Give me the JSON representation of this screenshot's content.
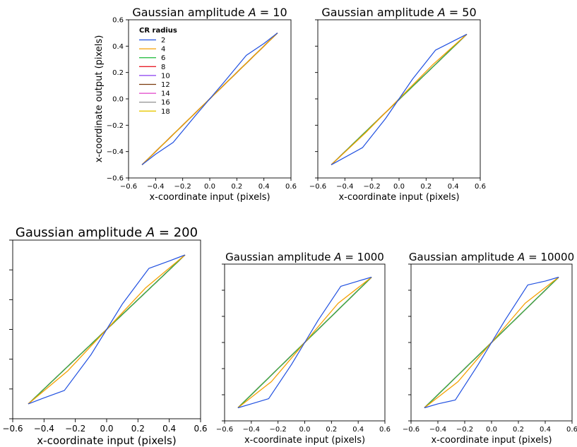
{
  "legend": {
    "title": "CR radius",
    "entries": [
      "2",
      "4",
      "6",
      "8",
      "10",
      "12",
      "14",
      "16",
      "18"
    ]
  },
  "colors": {
    "2": "#1f4fe0",
    "4": "#f5a000",
    "6": "#2fbf4a",
    "8": "#e8202a",
    "10": "#8a3cf0",
    "12": "#7a3a0c",
    "14": "#e040c8",
    "16": "#9a9a9a",
    "18": "#e8c800",
    "ideal_mid": "#e8702a"
  },
  "chart_data": [
    {
      "type": "line",
      "title": "Gaussian amplitude A = 10",
      "title_parts": {
        "prefix": "Gaussian amplitude ",
        "var": "A",
        "suffix": " = 10"
      },
      "xlabel": "x-coordinate input (pixels)",
      "ylabel": "x-coordinate output (pixels)",
      "xlim": [
        -0.6,
        0.6
      ],
      "ylim": [
        -0.6,
        0.6
      ],
      "xticks": [
        "−0.6",
        "−0.4",
        "−0.2",
        "0.0",
        "0.2",
        "0.4",
        "0.6"
      ],
      "yticks": [
        "−0.6",
        "−0.4",
        "−0.2",
        "0.0",
        "0.2",
        "0.4",
        "0.6"
      ],
      "show_legend": true,
      "series": [
        {
          "name": "2",
          "x": [
            -0.5,
            -0.4,
            -0.27,
            -0.1,
            0.0,
            0.1,
            0.27,
            0.4,
            0.5
          ],
          "y": [
            -0.5,
            -0.42,
            -0.33,
            -0.12,
            0.0,
            0.12,
            0.33,
            0.42,
            0.5
          ]
        },
        {
          "name": "4",
          "x": [
            -0.5,
            -0.25,
            0.0,
            0.25,
            0.5
          ],
          "y": [
            -0.5,
            -0.25,
            0.0,
            0.25,
            0.5
          ]
        },
        {
          "name": "6",
          "x": [
            -0.5,
            0.5
          ],
          "y": [
            -0.5,
            0.5
          ]
        },
        {
          "name": "8",
          "x": [
            -0.5,
            0.5
          ],
          "y": [
            -0.5,
            0.5
          ]
        },
        {
          "name": "10",
          "x": [
            -0.5,
            0.5
          ],
          "y": [
            -0.5,
            0.5
          ]
        },
        {
          "name": "12",
          "x": [
            -0.5,
            0.5
          ],
          "y": [
            -0.5,
            0.5
          ]
        },
        {
          "name": "14",
          "x": [
            -0.5,
            0.5
          ],
          "y": [
            -0.5,
            0.5
          ]
        },
        {
          "name": "16",
          "x": [
            -0.5,
            0.5
          ],
          "y": [
            -0.5,
            0.5
          ]
        },
        {
          "name": "18",
          "x": [
            -0.5,
            0.5
          ],
          "y": [
            -0.5,
            0.5
          ]
        }
      ]
    },
    {
      "type": "line",
      "title": "Gaussian amplitude A = 50",
      "title_parts": {
        "prefix": "Gaussian amplitude ",
        "var": "A",
        "suffix": " = 50"
      },
      "xlabel": "x-coordinate input (pixels)",
      "ylabel": "",
      "xlim": [
        -0.6,
        0.6
      ],
      "ylim": [
        -0.6,
        0.6
      ],
      "xticks": [
        "−0.6",
        "−0.4",
        "−0.2",
        "0.0",
        "0.2",
        "0.4",
        "0.6"
      ],
      "yticks": [],
      "show_legend": false,
      "series": [
        {
          "name": "2",
          "x": [
            -0.5,
            -0.27,
            -0.1,
            0.0,
            0.1,
            0.27,
            0.5
          ],
          "y": [
            -0.5,
            -0.37,
            -0.15,
            0.0,
            0.15,
            0.37,
            0.49
          ]
        },
        {
          "name": "4",
          "x": [
            -0.5,
            -0.25,
            0.0,
            0.25,
            0.5
          ],
          "y": [
            -0.5,
            -0.26,
            0.0,
            0.26,
            0.49
          ]
        },
        {
          "name": "6",
          "x": [
            -0.5,
            0.5
          ],
          "y": [
            -0.5,
            0.49
          ]
        },
        {
          "name": "8",
          "x": [
            -0.5,
            0.5
          ],
          "y": [
            -0.5,
            0.49
          ]
        },
        {
          "name": "10",
          "x": [
            -0.5,
            0.5
          ],
          "y": [
            -0.5,
            0.49
          ]
        },
        {
          "name": "12",
          "x": [
            -0.5,
            0.5
          ],
          "y": [
            -0.5,
            0.49
          ]
        },
        {
          "name": "14",
          "x": [
            -0.5,
            0.5
          ],
          "y": [
            -0.5,
            0.49
          ]
        },
        {
          "name": "16",
          "x": [
            -0.5,
            0.5
          ],
          "y": [
            -0.5,
            0.49
          ]
        },
        {
          "name": "18",
          "x": [
            -0.5,
            0.5
          ],
          "y": [
            -0.5,
            0.49
          ]
        }
      ]
    },
    {
      "type": "line",
      "title": "Gaussian amplitude A = 200",
      "title_parts": {
        "prefix": "Gaussian amplitude ",
        "var": "A",
        "suffix": " = 200"
      },
      "xlabel": "x-coordinate input (pixels)",
      "ylabel": "",
      "xlim": [
        -0.6,
        0.6
      ],
      "ylim": [
        -0.6,
        0.6
      ],
      "xticks": [
        "−0.6",
        "−0.4",
        "−0.2",
        "0.0",
        "0.2",
        "0.4",
        "0.6"
      ],
      "yticks": [],
      "show_legend": false,
      "series": [
        {
          "name": "2",
          "x": [
            -0.5,
            -0.4,
            -0.27,
            -0.1,
            0.0,
            0.1,
            0.27,
            0.4,
            0.5
          ],
          "y": [
            -0.5,
            -0.46,
            -0.41,
            -0.17,
            0.0,
            0.17,
            0.41,
            0.46,
            0.5
          ]
        },
        {
          "name": "4",
          "x": [
            -0.5,
            -0.25,
            0.0,
            0.25,
            0.5
          ],
          "y": [
            -0.5,
            -0.28,
            0.0,
            0.28,
            0.5
          ]
        },
        {
          "name": "6",
          "x": [
            -0.5,
            0.5
          ],
          "y": [
            -0.5,
            0.5
          ]
        },
        {
          "name": "8",
          "x": [
            -0.5,
            0.5
          ],
          "y": [
            -0.5,
            0.5
          ]
        },
        {
          "name": "10",
          "x": [
            -0.5,
            0.5
          ],
          "y": [
            -0.5,
            0.5
          ]
        },
        {
          "name": "12",
          "x": [
            -0.5,
            0.5
          ],
          "y": [
            -0.5,
            0.5
          ]
        },
        {
          "name": "14",
          "x": [
            -0.5,
            0.5
          ],
          "y": [
            -0.5,
            0.5
          ]
        },
        {
          "name": "16",
          "x": [
            -0.5,
            0.5
          ],
          "y": [
            -0.5,
            0.5
          ]
        },
        {
          "name": "18",
          "x": [
            -0.5,
            0.5
          ],
          "y": [
            -0.5,
            0.5
          ]
        }
      ]
    },
    {
      "type": "line",
      "title": "Gaussian amplitude A = 1000",
      "title_parts": {
        "prefix": "Gaussian amplitude ",
        "var": "A",
        "suffix": " = 1000"
      },
      "xlabel": "x-coordinate input (pixels)",
      "ylabel": "",
      "xlim": [
        -0.6,
        0.6
      ],
      "ylim": [
        -0.6,
        0.6
      ],
      "xticks": [
        "−0.6",
        "−0.4",
        "−0.2",
        "0.0",
        "0.2",
        "0.4",
        "0.6"
      ],
      "yticks": [],
      "show_legend": false,
      "series": [
        {
          "name": "2",
          "x": [
            -0.5,
            -0.4,
            -0.27,
            -0.1,
            0.0,
            0.1,
            0.27,
            0.4,
            0.5
          ],
          "y": [
            -0.5,
            -0.47,
            -0.43,
            -0.17,
            0.0,
            0.17,
            0.43,
            0.47,
            0.5
          ]
        },
        {
          "name": "4",
          "x": [
            -0.5,
            -0.25,
            0.0,
            0.25,
            0.5
          ],
          "y": [
            -0.5,
            -0.3,
            0.0,
            0.3,
            0.5
          ]
        },
        {
          "name": "6",
          "x": [
            -0.5,
            0.5
          ],
          "y": [
            -0.5,
            0.5
          ]
        },
        {
          "name": "8",
          "x": [
            -0.5,
            0.5
          ],
          "y": [
            -0.5,
            0.5
          ]
        },
        {
          "name": "10",
          "x": [
            -0.5,
            0.5
          ],
          "y": [
            -0.5,
            0.5
          ]
        },
        {
          "name": "12",
          "x": [
            -0.5,
            0.5
          ],
          "y": [
            -0.5,
            0.5
          ]
        },
        {
          "name": "14",
          "x": [
            -0.5,
            0.5
          ],
          "y": [
            -0.5,
            0.5
          ]
        },
        {
          "name": "16",
          "x": [
            -0.5,
            0.5
          ],
          "y": [
            -0.5,
            0.5
          ]
        },
        {
          "name": "18",
          "x": [
            -0.5,
            0.5
          ],
          "y": [
            -0.5,
            0.5
          ]
        }
      ]
    },
    {
      "type": "line",
      "title": "Gaussian amplitude A = 10000",
      "title_parts": {
        "prefix": "Gaussian amplitude ",
        "var": "A",
        "suffix": " = 10000"
      },
      "xlabel": "x-coordinate input (pixels)",
      "ylabel": "",
      "xlim": [
        -0.6,
        0.6
      ],
      "ylim": [
        -0.6,
        0.6
      ],
      "xticks": [
        "−0.6",
        "−0.4",
        "−0.2",
        "0.0",
        "0.2",
        "0.4",
        "0.6"
      ],
      "yticks": [],
      "show_legend": false,
      "series": [
        {
          "name": "2",
          "x": [
            -0.5,
            -0.4,
            -0.27,
            -0.1,
            0.0,
            0.1,
            0.27,
            0.4,
            0.5
          ],
          "y": [
            -0.5,
            -0.47,
            -0.44,
            -0.17,
            0.0,
            0.17,
            0.44,
            0.47,
            0.5
          ]
        },
        {
          "name": "4",
          "x": [
            -0.5,
            -0.25,
            0.0,
            0.25,
            0.5
          ],
          "y": [
            -0.5,
            -0.3,
            0.0,
            0.3,
            0.5
          ]
        },
        {
          "name": "6",
          "x": [
            -0.5,
            0.5
          ],
          "y": [
            -0.5,
            0.5
          ]
        },
        {
          "name": "8",
          "x": [
            -0.5,
            0.5
          ],
          "y": [
            -0.5,
            0.5
          ]
        },
        {
          "name": "10",
          "x": [
            -0.5,
            0.5
          ],
          "y": [
            -0.5,
            0.5
          ]
        },
        {
          "name": "12",
          "x": [
            -0.5,
            0.5
          ],
          "y": [
            -0.5,
            0.5
          ]
        },
        {
          "name": "14",
          "x": [
            -0.5,
            0.5
          ],
          "y": [
            -0.5,
            0.5
          ]
        },
        {
          "name": "16",
          "x": [
            -0.5,
            0.5
          ],
          "y": [
            -0.5,
            0.5
          ]
        },
        {
          "name": "18",
          "x": [
            -0.5,
            0.5
          ],
          "y": [
            -0.5,
            0.5
          ]
        }
      ]
    }
  ]
}
